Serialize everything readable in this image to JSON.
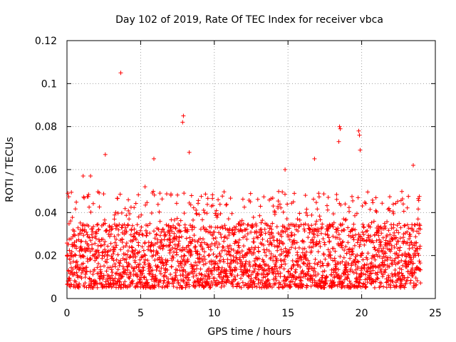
{
  "chart_data": {
    "type": "scatter",
    "title": "Day 102 of 2019, Rate Of TEC Index for receiver vbca",
    "xlabel": "GPS time / hours",
    "ylabel": "ROTI / TECUs",
    "xlim": [
      0,
      25
    ],
    "ylim": [
      0,
      0.12
    ],
    "xticks": [
      0,
      5,
      10,
      15,
      20,
      25
    ],
    "xtick_labels": [
      "0",
      "5",
      "10",
      "15",
      "20",
      "25"
    ],
    "yticks": [
      0,
      0.02,
      0.04,
      0.06,
      0.08,
      0.1,
      0.12
    ],
    "ytick_labels": [
      "0",
      "0.02",
      "0.04",
      "0.06",
      "0.08",
      "0.1",
      "0.12"
    ],
    "grid": true,
    "marker": "+",
    "marker_color": "#ff0000",
    "series": [
      {
        "name": "ROTI",
        "x_range": [
          0.0,
          24.0
        ],
        "typical_band": [
          0.005,
          0.035
        ],
        "notable_points": [
          {
            "x": 3.65,
            "y": 0.105
          },
          {
            "x": 7.9,
            "y": 0.085
          },
          {
            "x": 7.85,
            "y": 0.082
          },
          {
            "x": 2.6,
            "y": 0.067
          },
          {
            "x": 5.9,
            "y": 0.065
          },
          {
            "x": 8.3,
            "y": 0.068
          },
          {
            "x": 18.5,
            "y": 0.08
          },
          {
            "x": 18.55,
            "y": 0.079
          },
          {
            "x": 19.8,
            "y": 0.078
          },
          {
            "x": 19.85,
            "y": 0.076
          },
          {
            "x": 18.45,
            "y": 0.073
          },
          {
            "x": 19.9,
            "y": 0.069
          },
          {
            "x": 16.8,
            "y": 0.065
          },
          {
            "x": 23.5,
            "y": 0.062
          },
          {
            "x": 1.1,
            "y": 0.057
          },
          {
            "x": 1.6,
            "y": 0.057
          },
          {
            "x": 14.8,
            "y": 0.06
          },
          {
            "x": 5.3,
            "y": 0.052
          }
        ]
      }
    ]
  }
}
